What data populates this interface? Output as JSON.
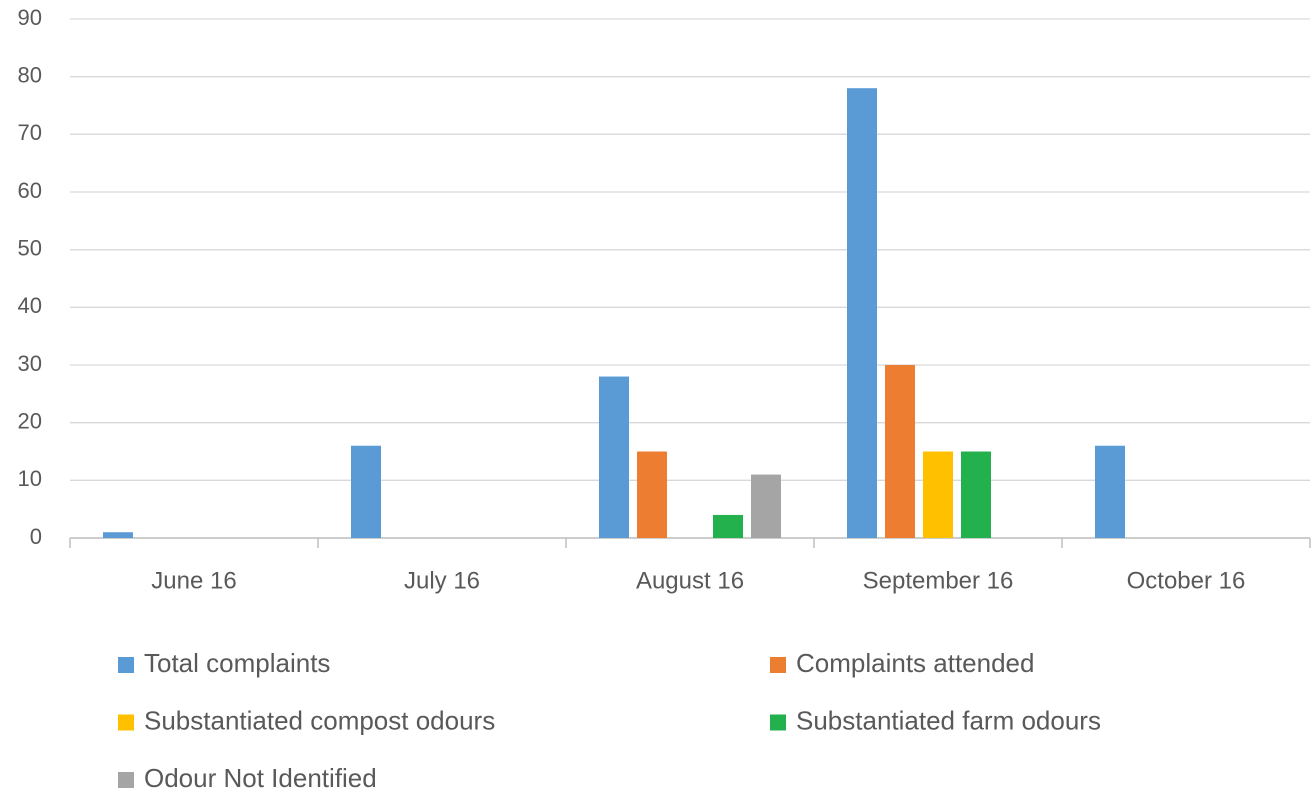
{
  "chart_data": {
    "type": "bar",
    "categories": [
      "June 16",
      "July 16",
      "August 16",
      "September 16",
      "October 16"
    ],
    "series": [
      {
        "name": "Total complaints",
        "color": "#5b9bd5",
        "values": [
          1,
          16,
          28,
          78,
          16
        ]
      },
      {
        "name": "Complaints attended",
        "color": "#ed7d31",
        "values": [
          0,
          0,
          15,
          30,
          0
        ]
      },
      {
        "name": "Substantiated compost odours",
        "color": "#ffc000",
        "values": [
          0,
          0,
          0,
          15,
          0
        ]
      },
      {
        "name": "Substantiated farm odours",
        "color": "#23b14d",
        "values": [
          0,
          0,
          4,
          15,
          0
        ]
      },
      {
        "name": "Odour Not Identified",
        "color": "#a5a5a5",
        "values": [
          0,
          0,
          11,
          0,
          0
        ]
      }
    ],
    "ylim": [
      0,
      90
    ],
    "yticks": [
      0,
      10,
      20,
      30,
      40,
      50,
      60,
      70,
      80,
      90
    ],
    "grid": true
  }
}
